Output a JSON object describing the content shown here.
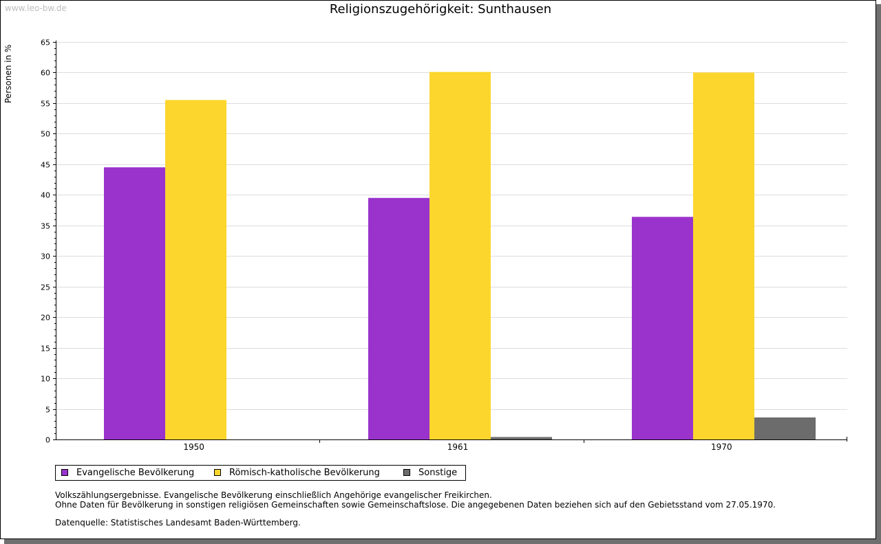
{
  "watermark": "www.leo-bw.de",
  "chart_data": {
    "type": "bar",
    "title": "Religionszugehörigkeit: Sunthausen",
    "xlabel": "",
    "ylabel": "Personen in %",
    "ylim": [
      0,
      65
    ],
    "yticks": [
      "0",
      "5",
      "10",
      "15",
      "20",
      "25",
      "30",
      "35",
      "40",
      "45",
      "50",
      "55",
      "60",
      "65"
    ],
    "grid": true,
    "legend_position": "bottom",
    "categories": [
      "1950",
      "1961",
      "1970"
    ],
    "series": [
      {
        "name": "Evangelische Bevölkerung",
        "color": "#9933cc",
        "values": [
          44.5,
          39.5,
          36.4
        ]
      },
      {
        "name": "Römisch-katholische Bevölkerung",
        "color": "#fcd62c",
        "values": [
          55.5,
          60.1,
          60.0
        ]
      },
      {
        "name": "Sonstige",
        "color": "#6c6c6c",
        "values": [
          null,
          0.4,
          3.6
        ]
      }
    ]
  },
  "notes": {
    "line1": "Volkszählungsergebnisse. Evangelische Bevölkerung einschließlich Angehörige evangelischer Freikirchen.",
    "line2": "Ohne Daten für Bevölkerung in sonstigen religiösen Gemeinschaften sowie Gemeinschaftslose. Die angegebenen Daten beziehen sich auf den Gebietsstand vom 27.05.1970.",
    "source": "Datenquelle: Statistisches Landesamt Baden-Württemberg."
  }
}
